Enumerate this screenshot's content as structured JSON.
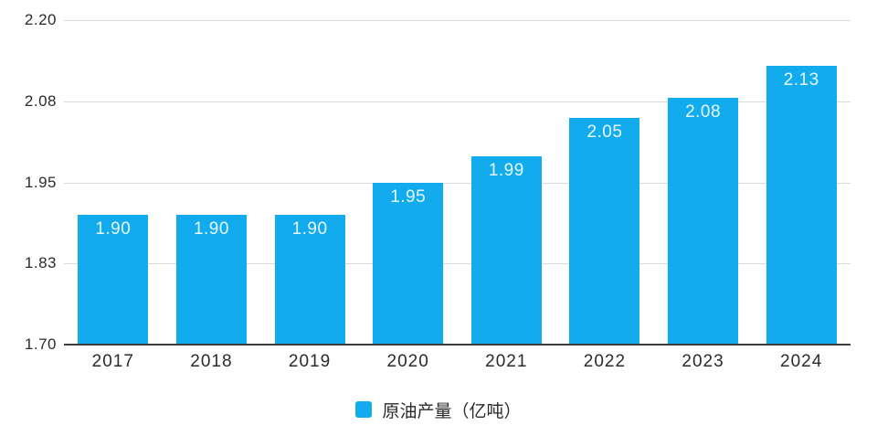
{
  "chart_data": {
    "type": "bar",
    "categories": [
      "2017",
      "2018",
      "2019",
      "2020",
      "2021",
      "2022",
      "2023",
      "2024"
    ],
    "values": [
      1.9,
      1.9,
      1.9,
      1.95,
      1.99,
      2.05,
      2.08,
      2.13
    ],
    "value_labels": [
      "1.90",
      "1.90",
      "1.90",
      "1.95",
      "1.99",
      "2.05",
      "2.08",
      "2.13"
    ],
    "y_tick_labels": [
      "2.20",
      "2.08",
      "1.95",
      "1.83",
      "1.70"
    ],
    "ylim": [
      1.7,
      2.2
    ],
    "grid": true,
    "legend_position": "bottom",
    "legend_label": "原油产量（亿吨）",
    "colors": {
      "bar": "#12acee",
      "value_label": "#e8f6fd",
      "axis_text": "#2b2b2b",
      "gridline": "#dbdbdb",
      "baseline": "#3e3e3e",
      "background": "#ffffff"
    }
  }
}
